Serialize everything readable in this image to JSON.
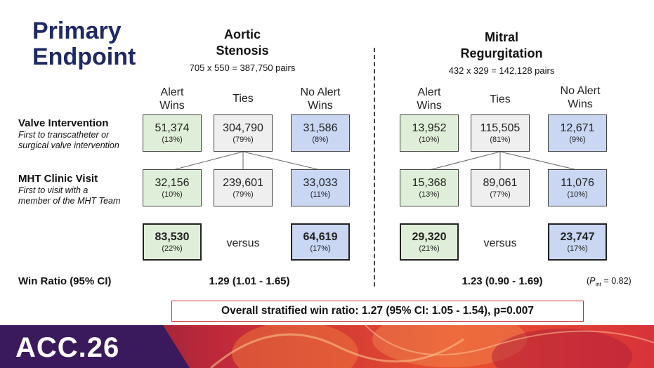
{
  "title": {
    "line1": "Primary",
    "line2": "Endpoint"
  },
  "aortic": {
    "heading_line1": "Aortic",
    "heading_line2": "Stenosis",
    "pairs": "705 x 550 = 387,750 pairs",
    "col_alert_l1": "Alert",
    "col_alert_l2": "Wins",
    "col_ties": "Ties",
    "col_noalert_l1": "No Alert",
    "col_noalert_l2": "Wins",
    "valve": {
      "alert": {
        "num": "51,374",
        "pct": "(13%)"
      },
      "ties": {
        "num": "304,790",
        "pct": "(79%)"
      },
      "noalert": {
        "num": "31,586",
        "pct": "(8%)"
      }
    },
    "mht": {
      "alert": {
        "num": "32,156",
        "pct": "(10%)"
      },
      "ties": {
        "num": "239,601",
        "pct": "(79%)"
      },
      "noalert": {
        "num": "33,033",
        "pct": "(11%)"
      }
    },
    "total": {
      "alert": {
        "num": "83,530",
        "pct": "(22%)"
      },
      "versus": "versus",
      "noalert": {
        "num": "64,619",
        "pct": "(17%)"
      }
    },
    "win_ratio": "1.29 (1.01 - 1.65)"
  },
  "mitral": {
    "heading_line1": "Mitral",
    "heading_line2": "Regurgitation",
    "pairs": "432 x 329 = 142,128 pairs",
    "col_alert_l1": "Alert",
    "col_alert_l2": "Wins",
    "col_ties": "Ties",
    "col_noalert_l1": "No Alert",
    "col_noalert_l2": "Wins",
    "valve": {
      "alert": {
        "num": "13,952",
        "pct": "(10%)"
      },
      "ties": {
        "num": "115,505",
        "pct": "(81%)"
      },
      "noalert": {
        "num": "12,671",
        "pct": "(9%)"
      }
    },
    "mht": {
      "alert": {
        "num": "15,368",
        "pct": "(13%)"
      },
      "ties": {
        "num": "89,061",
        "pct": "(77%)"
      },
      "noalert": {
        "num": "11,076",
        "pct": "(10%)"
      }
    },
    "total": {
      "alert": {
        "num": "29,320",
        "pct": "(21%)"
      },
      "versus": "versus",
      "noalert": {
        "num": "23,747",
        "pct": "(17%)"
      }
    },
    "win_ratio": "1.23 (0.90 - 1.69)"
  },
  "rows": {
    "valve_main": "Valve Intervention",
    "valve_sub1": "First to transcatheter or",
    "valve_sub2": "surgical valve intervention",
    "mht_main": "MHT Clinic Visit",
    "mht_sub1": "First to visit with a",
    "mht_sub2": "member of the MHT Team"
  },
  "win_ratio_label": "Win Ratio (95% CI)",
  "p_interaction": {
    "prefix": "(",
    "p": "P",
    "sub": "int",
    "suffix": " = 0.82)"
  },
  "overall": "Overall stratified win ratio: 1.27 (95% CI: 1.05 - 1.54), p=0.007",
  "brand": "ACC.26",
  "colors": {
    "title": "#1f2a63",
    "alert_box": "#dfeed8",
    "ties_box": "#efefef",
    "noalert_box": "#c9d7f3",
    "overall_border": "#d22a2a",
    "banner_left": "#3a1a5c",
    "banner_right": "#e8402a"
  }
}
